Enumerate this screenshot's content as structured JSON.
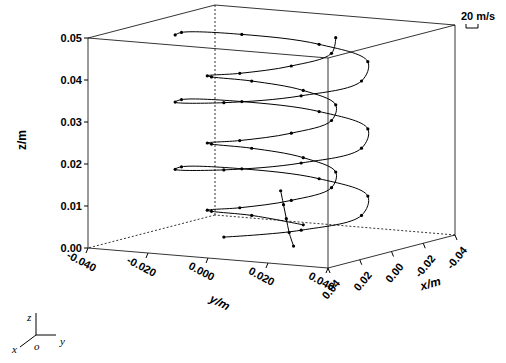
{
  "chart_data": {
    "type": "line3d",
    "x_label": "x/m",
    "y_label": "y/m",
    "z_label": "z/m",
    "annotations": [
      "20 m/s"
    ],
    "triad_labels": [
      "z",
      "x",
      "o",
      "y"
    ],
    "xlim": [
      -0.04,
      0.04
    ],
    "xticks": [
      -0.04,
      -0.02,
      {
        "value": 0,
        "label": "0.00"
      },
      0.02,
      0.04
    ],
    "ylim": [
      -0.04,
      0.04
    ],
    "yticks": [
      {
        "value": -0.04,
        "label": "-0.040"
      },
      {
        "value": -0.02,
        "label": "-0.020"
      },
      {
        "value": 0,
        "label": "0.000"
      },
      {
        "value": 0.02,
        "label": "0.020"
      },
      {
        "value": 0.04,
        "label": "0.040"
      }
    ],
    "zlim": [
      0,
      0.05
    ],
    "zticks": [
      {
        "value": 0,
        "label": "0.00"
      },
      0.01,
      0.02,
      0.03,
      0.04,
      0.05
    ],
    "grid": false,
    "series": [
      {
        "color": "#000000",
        "marker": "circle",
        "line_style": "solid",
        "x": [
          0.03,
          0.021,
          0,
          -0.021,
          -0.03,
          -0.021,
          0,
          0.021,
          0.03,
          0.021,
          0,
          -0.021,
          -0.03,
          -0.021,
          0,
          0.021,
          0.03,
          0.021,
          0,
          -0.021,
          -0.03,
          -0.021,
          0,
          0.021
        ],
        "y": [
          0,
          0.021,
          0.03,
          0.021,
          0,
          -0.021,
          -0.03,
          -0.021,
          0,
          0.021,
          0.03,
          0.021,
          0,
          -0.021,
          -0.03,
          -0.021,
          0,
          0.021,
          0.03,
          0.021,
          0,
          -0.021,
          -0.03,
          -0.021
        ],
        "z": [
          0.004,
          0.006,
          0.008,
          0.01,
          0.012,
          0.014,
          0.016,
          0.018,
          0.02,
          0.022,
          0.024,
          0.026,
          0.028,
          0.03,
          0.032,
          0.034,
          0.036,
          0.038,
          0.04,
          0.042,
          0.044,
          0.046,
          0.048,
          0.05
        ]
      },
      {
        "color": "#000000",
        "marker": "circle",
        "line_style": "solid",
        "x": [
          -0.02,
          -0.014,
          0,
          0.014,
          0.02,
          0.014,
          0,
          -0.014,
          -0.02,
          -0.014,
          0,
          0.014,
          0.02,
          0.014,
          0,
          -0.014,
          -0.02,
          -0.014,
          0,
          0.014,
          0.02,
          0.014,
          0,
          -0.014
        ],
        "y": [
          0,
          -0.014,
          -0.02,
          -0.014,
          0,
          0.014,
          0.02,
          0.014,
          0,
          -0.014,
          -0.02,
          -0.014,
          0,
          0.014,
          0.02,
          0.014,
          0,
          -0.014,
          -0.02,
          -0.014,
          0,
          0.014,
          0.02,
          0.014
        ],
        "z": [
          0.002,
          0.004,
          0.006,
          0.008,
          0.01,
          0.012,
          0.014,
          0.016,
          0.018,
          0.02,
          0.022,
          0.024,
          0.026,
          0.028,
          0.03,
          0.032,
          0.034,
          0.036,
          0.038,
          0.04,
          0.042,
          0.044,
          0.046,
          0.048
        ]
      },
      {
        "color": "#000000",
        "marker": "circle",
        "line_style": "solid",
        "x": [
          0.005,
          0.004,
          0.002,
          0,
          -0.002
        ],
        "y": [
          0.01,
          0.008,
          0.006,
          0.004,
          0.002
        ],
        "z": [
          0,
          0.003,
          0.006,
          0.009,
          0.012
        ]
      }
    ]
  }
}
